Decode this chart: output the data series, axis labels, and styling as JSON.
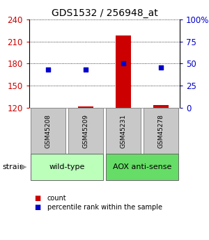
{
  "title": "GDS1532 / 256948_at",
  "samples": [
    "GSM45208",
    "GSM45209",
    "GSM45231",
    "GSM45278"
  ],
  "counts": [
    120,
    122,
    218,
    124
  ],
  "percentile_ranks": [
    43,
    43,
    50,
    46
  ],
  "ylim_left": [
    120,
    240
  ],
  "yticks_left": [
    120,
    150,
    180,
    210,
    240
  ],
  "yticks_right": [
    0,
    25,
    50,
    75,
    100
  ],
  "bar_color": "#cc0000",
  "dot_color": "#0000cc",
  "bar_bottom": 120,
  "sample_box_color": "#c8c8c8",
  "sample_box_edge": "#888888",
  "group_spans": [
    [
      0,
      1,
      "wild-type",
      "#bbffbb"
    ],
    [
      2,
      3,
      "AOX anti-sense",
      "#66dd66"
    ]
  ],
  "legend_count_color": "#cc0000",
  "legend_pct_color": "#0000cc",
  "left_tick_color": "#cc0000",
  "right_tick_color": "#0000cc",
  "grid_color": "#000000",
  "figsize": [
    3.0,
    3.45
  ],
  "dpi": 100
}
